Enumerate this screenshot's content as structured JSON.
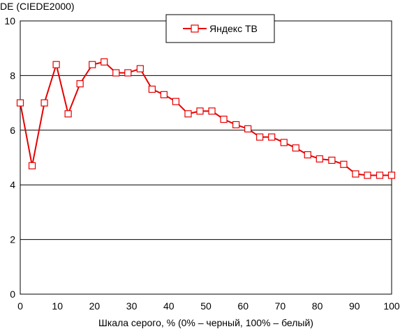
{
  "chart_data": {
    "type": "line",
    "ylabel": "DE (CIEDE2000)",
    "xlabel": "Шкала серого, % (0% – черный, 100% – белый)",
    "xlim": [
      0,
      100
    ],
    "ylim": [
      0,
      10
    ],
    "x_ticks": [
      0,
      10,
      20,
      30,
      40,
      50,
      60,
      70,
      80,
      90,
      100
    ],
    "y_ticks": [
      0,
      2,
      4,
      6,
      8,
      10
    ],
    "grid": "horizontal",
    "legend_position": "top-center",
    "series": [
      {
        "name": "Яндекс ТВ",
        "color": "#e60000",
        "marker": "square",
        "x": [
          0,
          3.2,
          6.5,
          9.7,
          12.9,
          16.1,
          19.4,
          22.6,
          25.8,
          29.0,
          32.3,
          35.5,
          38.7,
          41.9,
          45.2,
          48.4,
          51.6,
          54.8,
          58.1,
          61.3,
          64.5,
          67.7,
          71.0,
          74.2,
          77.4,
          80.6,
          83.9,
          87.1,
          90.3,
          93.5,
          96.8,
          100
        ],
        "values": [
          7.0,
          4.7,
          7.0,
          8.4,
          6.6,
          7.7,
          8.4,
          8.5,
          8.1,
          8.1,
          8.25,
          7.5,
          7.3,
          7.05,
          6.6,
          6.7,
          6.7,
          6.4,
          6.2,
          6.05,
          5.75,
          5.75,
          5.55,
          5.35,
          5.1,
          4.95,
          4.9,
          4.75,
          4.4,
          4.35,
          4.35,
          4.35
        ]
      }
    ]
  }
}
